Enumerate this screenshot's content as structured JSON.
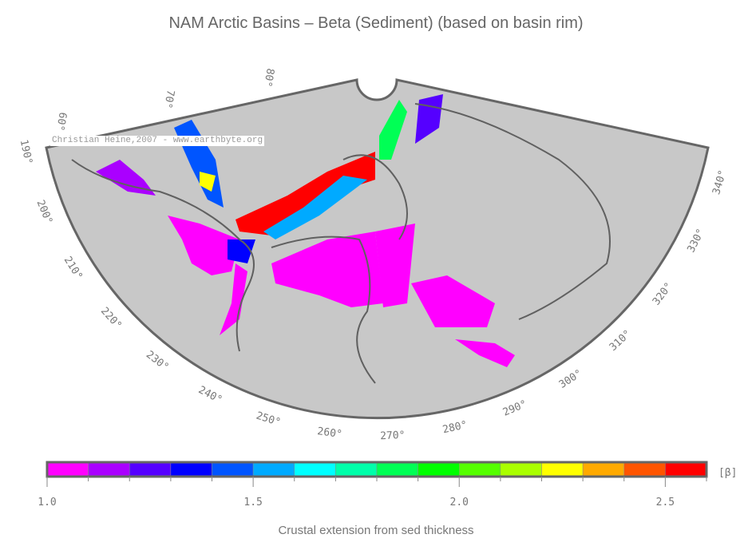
{
  "title": "NAM Arctic Basins – Beta (Sediment) (based on basin rim)",
  "watermark": "Christian Heine,2007 - www.earthbyte.org",
  "map": {
    "projection": "conic polar sector",
    "background_color": "#c8c8c8",
    "coastline_color": "#606060",
    "longitude_labels": [
      "190°",
      "200°",
      "210°",
      "220°",
      "230°",
      "240°",
      "250°",
      "260°",
      "270°",
      "280°",
      "290°",
      "300°",
      "310°",
      "320°",
      "330°",
      "340°"
    ],
    "latitude_labels": [
      "60°",
      "70°",
      "80°"
    ]
  },
  "colorbar": {
    "label": "Crustal extension from sed thickness",
    "unit": "[β]",
    "range": [
      1.0,
      2.6
    ],
    "step": 0.1,
    "tick_labels": [
      "1.0",
      "1.5",
      "2.0",
      "2.5"
    ],
    "colors": [
      "#ff00ff",
      "#aa00ff",
      "#5500ff",
      "#0000ff",
      "#0055ff",
      "#00aaff",
      "#00ffff",
      "#00ffaa",
      "#00ff55",
      "#00ff00",
      "#55ff00",
      "#aaff00",
      "#ffff00",
      "#ffaa00",
      "#ff5500",
      "#ff0000"
    ]
  }
}
